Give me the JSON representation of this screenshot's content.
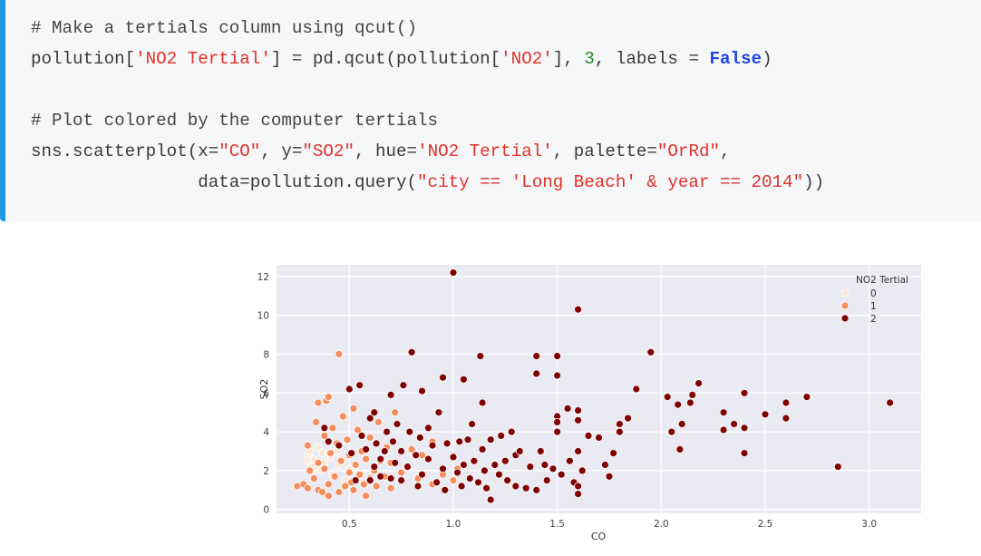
{
  "code": {
    "lines": [
      [
        {
          "t": "# Make a tertials column using qcut()",
          "c": "tok-com"
        }
      ],
      [
        {
          "t": "pollution[",
          "c": ""
        },
        {
          "t": "'NO2 Tertial'",
          "c": "tok-str"
        },
        {
          "t": "] = pd.qcut(pollution[",
          "c": ""
        },
        {
          "t": "'NO2'",
          "c": "tok-str"
        },
        {
          "t": "], ",
          "c": ""
        },
        {
          "t": "3",
          "c": "tok-num"
        },
        {
          "t": ", labels = ",
          "c": ""
        },
        {
          "t": "False",
          "c": "tok-kw"
        },
        {
          "t": ")",
          "c": ""
        }
      ],
      [
        {
          "t": "",
          "c": ""
        }
      ],
      [
        {
          "t": "# Plot colored by the computer tertials",
          "c": "tok-com"
        }
      ],
      [
        {
          "t": "sns.scatterplot(x=",
          "c": ""
        },
        {
          "t": "\"CO\"",
          "c": "tok-str"
        },
        {
          "t": ", y=",
          "c": ""
        },
        {
          "t": "\"SO2\"",
          "c": "tok-str"
        },
        {
          "t": ", hue=",
          "c": ""
        },
        {
          "t": "'NO2 Tertial'",
          "c": "tok-str"
        },
        {
          "t": ", palette=",
          "c": ""
        },
        {
          "t": "\"OrRd\"",
          "c": "tok-str"
        },
        {
          "t": ",",
          "c": ""
        }
      ],
      [
        {
          "t": "                data=pollution.query(",
          "c": ""
        },
        {
          "t": "\"city == 'Long Beach' & year == 2014\"",
          "c": "tok-str"
        },
        {
          "t": "))",
          "c": ""
        }
      ]
    ]
  },
  "chart_data": {
    "type": "scatter",
    "xlabel": "CO",
    "ylabel": "SO2",
    "xlim": [
      0.15,
      3.25
    ],
    "ylim": [
      -0.2,
      12.6
    ],
    "xticks": [
      0.5,
      1.0,
      1.5,
      2.0,
      2.5,
      3.0
    ],
    "xtick_labels": [
      "0.5",
      "1.0",
      "1.5",
      "2.0",
      "2.5",
      "3.0"
    ],
    "yticks": [
      0,
      2,
      4,
      6,
      8,
      10,
      12
    ],
    "ytick_labels": [
      "0",
      "2",
      "4",
      "6",
      "8",
      "10",
      "12"
    ],
    "grid": true,
    "legend_position": "top-right",
    "legend_title": "NO2 Tertial",
    "series": [
      {
        "name": "0",
        "color": "#fbe8d8",
        "points": [
          [
            0.3,
            2.8
          ],
          [
            0.3,
            2.5
          ],
          [
            0.31,
            3.0
          ],
          [
            0.32,
            2.2
          ],
          [
            0.33,
            2.6
          ],
          [
            0.35,
            3.2
          ],
          [
            0.36,
            2.0
          ],
          [
            0.37,
            2.9
          ],
          [
            0.38,
            2.4
          ],
          [
            0.4,
            3.5
          ],
          [
            0.41,
            2.7
          ],
          [
            0.42,
            1.8
          ],
          [
            0.44,
            3.0
          ],
          [
            0.45,
            2.3
          ],
          [
            0.47,
            2.6
          ],
          [
            0.48,
            1.5
          ],
          [
            0.5,
            2.1
          ]
        ]
      },
      {
        "name": "1",
        "color": "#f58c5a",
        "points": [
          [
            0.25,
            1.2
          ],
          [
            0.28,
            1.3
          ],
          [
            0.3,
            3.3
          ],
          [
            0.3,
            1.1
          ],
          [
            0.31,
            2.0
          ],
          [
            0.33,
            1.6
          ],
          [
            0.34,
            4.5
          ],
          [
            0.35,
            1.0
          ],
          [
            0.35,
            2.4
          ],
          [
            0.35,
            5.5
          ],
          [
            0.37,
            0.9
          ],
          [
            0.38,
            3.8
          ],
          [
            0.38,
            2.1
          ],
          [
            0.39,
            5.6
          ],
          [
            0.4,
            1.3
          ],
          [
            0.4,
            0.7
          ],
          [
            0.4,
            5.8
          ],
          [
            0.41,
            2.9
          ],
          [
            0.42,
            4.2
          ],
          [
            0.43,
            1.7
          ],
          [
            0.44,
            3.4
          ],
          [
            0.45,
            8.0
          ],
          [
            0.45,
            0.9
          ],
          [
            0.46,
            2.5
          ],
          [
            0.47,
            4.8
          ],
          [
            0.48,
            1.2
          ],
          [
            0.49,
            3.6
          ],
          [
            0.5,
            1.9
          ],
          [
            0.5,
            2.8
          ],
          [
            0.51,
            1.4
          ],
          [
            0.52,
            5.2
          ],
          [
            0.52,
            1.0
          ],
          [
            0.53,
            2.3
          ],
          [
            0.54,
            4.1
          ],
          [
            0.55,
            1.8
          ],
          [
            0.56,
            3.0
          ],
          [
            0.57,
            1.3
          ],
          [
            0.58,
            0.7
          ],
          [
            0.58,
            2.6
          ],
          [
            0.6,
            1.6
          ],
          [
            0.6,
            3.7
          ],
          [
            0.62,
            2.0
          ],
          [
            0.63,
            1.2
          ],
          [
            0.64,
            4.5
          ],
          [
            0.65,
            2.5
          ],
          [
            0.67,
            1.7
          ],
          [
            0.68,
            3.2
          ],
          [
            0.7,
            1.1
          ],
          [
            0.7,
            2.4
          ],
          [
            0.72,
            5.0
          ],
          [
            0.75,
            1.9
          ],
          [
            0.78,
            2.2
          ],
          [
            0.8,
            3.1
          ],
          [
            0.83,
            1.6
          ],
          [
            0.85,
            2.8
          ],
          [
            0.9,
            1.3
          ],
          [
            0.9,
            3.5
          ],
          [
            0.95,
            1.8
          ],
          [
            1.0,
            1.5
          ],
          [
            1.02,
            2.1
          ]
        ]
      },
      {
        "name": "2",
        "color": "#7f0000",
        "points": [
          [
            0.38,
            4.2
          ],
          [
            0.4,
            3.5
          ],
          [
            0.45,
            3.3
          ],
          [
            0.5,
            6.2
          ],
          [
            0.51,
            2.9
          ],
          [
            0.53,
            1.5
          ],
          [
            0.55,
            6.4
          ],
          [
            0.56,
            3.8
          ],
          [
            0.58,
            3.1
          ],
          [
            0.6,
            1.5
          ],
          [
            0.6,
            4.7
          ],
          [
            0.62,
            2.2
          ],
          [
            0.62,
            5.0
          ],
          [
            0.63,
            3.4
          ],
          [
            0.65,
            2.6
          ],
          [
            0.65,
            1.7
          ],
          [
            0.67,
            3.0
          ],
          [
            0.68,
            4.0
          ],
          [
            0.7,
            1.6
          ],
          [
            0.7,
            5.9
          ],
          [
            0.71,
            3.5
          ],
          [
            0.72,
            2.4
          ],
          [
            0.73,
            4.4
          ],
          [
            0.75,
            1.5
          ],
          [
            0.75,
            3.0
          ],
          [
            0.76,
            6.4
          ],
          [
            0.78,
            2.2
          ],
          [
            0.79,
            4.0
          ],
          [
            0.8,
            8.1
          ],
          [
            0.82,
            2.8
          ],
          [
            0.83,
            1.2
          ],
          [
            0.84,
            3.7
          ],
          [
            0.85,
            6.1
          ],
          [
            0.85,
            1.8
          ],
          [
            0.88,
            4.2
          ],
          [
            0.88,
            2.6
          ],
          [
            0.9,
            3.3
          ],
          [
            0.92,
            1.4
          ],
          [
            0.93,
            5.0
          ],
          [
            0.95,
            2.1
          ],
          [
            0.95,
            6.8
          ],
          [
            0.96,
            1.0
          ],
          [
            0.97,
            3.4
          ],
          [
            1.0,
            12.2
          ],
          [
            1.0,
            2.7
          ],
          [
            1.02,
            1.9
          ],
          [
            1.03,
            3.5
          ],
          [
            1.04,
            1.2
          ],
          [
            1.05,
            6.7
          ],
          [
            1.05,
            2.3
          ],
          [
            1.07,
            3.6
          ],
          [
            1.08,
            1.6
          ],
          [
            1.09,
            4.4
          ],
          [
            1.1,
            2.5
          ],
          [
            1.12,
            1.4
          ],
          [
            1.13,
            7.9
          ],
          [
            1.14,
            3.1
          ],
          [
            1.14,
            5.5
          ],
          [
            1.15,
            2.0
          ],
          [
            1.16,
            1.1
          ],
          [
            1.18,
            0.5
          ],
          [
            1.18,
            3.6
          ],
          [
            1.2,
            2.3
          ],
          [
            1.22,
            1.8
          ],
          [
            1.23,
            3.8
          ],
          [
            1.25,
            2.5
          ],
          [
            1.26,
            1.5
          ],
          [
            1.28,
            4.0
          ],
          [
            1.3,
            2.8
          ],
          [
            1.3,
            1.2
          ],
          [
            1.32,
            3.0
          ],
          [
            1.35,
            1.1
          ],
          [
            1.37,
            2.2
          ],
          [
            1.4,
            7.9
          ],
          [
            1.4,
            7.0
          ],
          [
            1.4,
            1.0
          ],
          [
            1.42,
            3.0
          ],
          [
            1.44,
            2.3
          ],
          [
            1.45,
            1.5
          ],
          [
            1.48,
            2.1
          ],
          [
            1.5,
            7.9
          ],
          [
            1.5,
            6.9
          ],
          [
            1.5,
            4.8
          ],
          [
            1.5,
            4.5
          ],
          [
            1.5,
            4.0
          ],
          [
            1.52,
            1.8
          ],
          [
            1.55,
            5.2
          ],
          [
            1.56,
            2.5
          ],
          [
            1.58,
            1.4
          ],
          [
            1.6,
            10.3
          ],
          [
            1.6,
            5.1
          ],
          [
            1.6,
            4.6
          ],
          [
            1.6,
            3.0
          ],
          [
            1.6,
            0.8
          ],
          [
            1.6,
            1.2
          ],
          [
            1.62,
            2.0
          ],
          [
            1.65,
            3.8
          ],
          [
            1.7,
            3.7
          ],
          [
            1.73,
            2.3
          ],
          [
            1.75,
            1.7
          ],
          [
            1.77,
            2.9
          ],
          [
            1.8,
            4.4
          ],
          [
            1.8,
            4.0
          ],
          [
            1.84,
            4.7
          ],
          [
            1.88,
            6.2
          ],
          [
            1.95,
            8.1
          ],
          [
            2.03,
            5.8
          ],
          [
            2.05,
            4.0
          ],
          [
            2.08,
            5.4
          ],
          [
            2.09,
            3.1
          ],
          [
            2.1,
            4.4
          ],
          [
            2.14,
            5.5
          ],
          [
            2.15,
            5.9
          ],
          [
            2.18,
            6.5
          ],
          [
            2.3,
            5.0
          ],
          [
            2.3,
            4.1
          ],
          [
            2.35,
            4.4
          ],
          [
            2.4,
            6.0
          ],
          [
            2.4,
            4.2
          ],
          [
            2.4,
            2.9
          ],
          [
            2.5,
            4.9
          ],
          [
            2.6,
            5.5
          ],
          [
            2.6,
            4.7
          ],
          [
            2.7,
            5.8
          ],
          [
            2.85,
            2.2
          ],
          [
            3.1,
            5.5
          ]
        ]
      }
    ]
  }
}
